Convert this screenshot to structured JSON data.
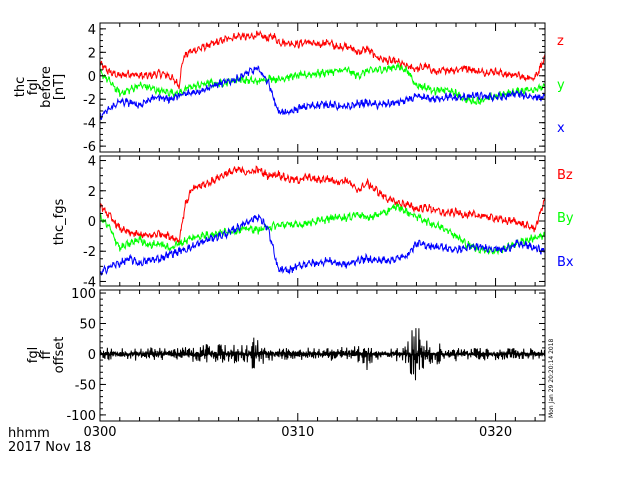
{
  "chart_data": {
    "type": "line",
    "x_axis": {
      "tick_labels": [
        "0300",
        "0310",
        "0320"
      ],
      "tick_minutes": [
        0,
        10,
        20
      ],
      "range_minutes": [
        0,
        22.5
      ],
      "label_line1": "hhmm",
      "label_line2": "2017 Nov 18"
    },
    "timestamp": "Mon Jan 29 20:20:14 2018",
    "panels": [
      {
        "ylabel_lines": [
          "thc",
          "fgl",
          "before",
          "[nT]"
        ],
        "yticks": [
          "4",
          "2",
          "0",
          "-2",
          "-4",
          "-6"
        ],
        "ytick_values": [
          4,
          2,
          0,
          -2,
          -4,
          -6
        ],
        "ylim": [
          -6.5,
          4.5
        ],
        "grid": false,
        "series": [
          {
            "name": "z",
            "color": "#ff0000",
            "x": [
              0,
              0.5,
              1,
              1.5,
              2,
              2.5,
              3,
              3.5,
              4,
              4.2,
              4.5,
              5,
              5.5,
              6,
              6.5,
              7,
              7.5,
              8,
              8.5,
              8.8,
              9,
              9.5,
              10,
              10.5,
              11,
              11.5,
              12,
              12.5,
              13,
              13.5,
              14,
              14.5,
              15,
              15.5,
              16,
              16.5,
              17,
              17.5,
              18,
              18.5,
              19,
              19.5,
              20,
              20.5,
              21,
              21.5,
              22,
              22.5
            ],
            "y": [
              1.0,
              0.3,
              0.0,
              0.2,
              0.0,
              0.0,
              0.2,
              0.0,
              -0.8,
              1.5,
              2.0,
              2.3,
              2.6,
              2.9,
              3.2,
              3.4,
              3.3,
              3.5,
              3.2,
              3.4,
              2.9,
              2.8,
              2.7,
              2.9,
              2.6,
              2.9,
              2.4,
              2.6,
              2.0,
              2.3,
              1.6,
              1.3,
              1.2,
              0.8,
              0.6,
              0.8,
              0.3,
              0.5,
              0.5,
              0.7,
              0.4,
              0.3,
              0.4,
              0.1,
              0.1,
              -0.2,
              -0.1,
              1.5
            ]
          },
          {
            "name": "y",
            "color": "#00ff00",
            "x": [
              0,
              0.5,
              1,
              1.5,
              2,
              2.5,
              3,
              3.5,
              4,
              4.5,
              5,
              5.5,
              6,
              6.5,
              7,
              7.5,
              8,
              8.5,
              9,
              9.5,
              10,
              10.5,
              11,
              11.5,
              12,
              12.5,
              13,
              13.5,
              14,
              14.5,
              15,
              15.5,
              16,
              16.5,
              17,
              17.5,
              18,
              18.5,
              19,
              19.5,
              20,
              20.5,
              21,
              21.5,
              22,
              22.5
            ],
            "y": [
              0.3,
              -0.5,
              -1.5,
              -1.2,
              -0.8,
              -1.0,
              -1.3,
              -1.4,
              -1.5,
              -1.0,
              -0.8,
              -0.6,
              -0.7,
              -0.5,
              -0.3,
              -0.4,
              -0.5,
              -0.2,
              -0.3,
              -0.1,
              0.0,
              0.1,
              0.2,
              0.3,
              0.4,
              0.5,
              0.0,
              0.4,
              0.5,
              0.6,
              0.8,
              0.5,
              -0.8,
              -1.0,
              -1.3,
              -1.2,
              -1.5,
              -2.0,
              -2.2,
              -2.0,
              -1.8,
              -1.5,
              -1.4,
              -1.2,
              -1.1,
              -1.0
            ]
          },
          {
            "name": "x",
            "color": "#0000ff",
            "x": [
              0,
              0.5,
              1,
              1.5,
              2,
              2.5,
              3,
              3.5,
              4,
              4.5,
              5,
              5.5,
              6,
              6.5,
              7,
              7.5,
              8,
              8.5,
              9,
              9.5,
              10,
              10.5,
              11,
              11.5,
              12,
              12.5,
              13,
              13.5,
              14,
              14.5,
              15,
              15.5,
              16,
              16.5,
              17,
              17.5,
              18,
              18.5,
              19,
              19.5,
              20,
              20.5,
              21,
              21.5,
              22,
              22.5
            ],
            "y": [
              -3.5,
              -2.8,
              -2.2,
              -2.3,
              -2.5,
              -2.0,
              -1.8,
              -2.0,
              -1.7,
              -1.5,
              -1.3,
              -1.0,
              -0.7,
              -0.5,
              -0.2,
              0.3,
              0.6,
              -0.5,
              -3.0,
              -3.2,
              -2.8,
              -2.6,
              -2.5,
              -2.4,
              -2.6,
              -2.7,
              -2.4,
              -2.3,
              -2.5,
              -2.4,
              -2.3,
              -2.1,
              -1.8,
              -1.9,
              -2.0,
              -1.8,
              -1.9,
              -1.8,
              -1.7,
              -1.8,
              -1.8,
              -1.8,
              -1.5,
              -1.7,
              -1.8,
              -1.9
            ]
          }
        ]
      },
      {
        "ylabel_lines": [
          "thc_fgs"
        ],
        "yticks": [
          "4",
          "2",
          "0",
          "-2",
          "-4"
        ],
        "ytick_values": [
          4,
          2,
          0,
          -2,
          -4
        ],
        "ylim": [
          -4.3,
          4.3
        ],
        "grid": false,
        "series": [
          {
            "name": "Bz",
            "color": "#ff0000",
            "x": [
              0,
              0.5,
              1,
              1.5,
              2,
              2.5,
              3,
              3.5,
              4,
              4.3,
              4.6,
              5,
              5.5,
              6,
              6.5,
              7,
              7.5,
              8,
              8.5,
              9,
              9.5,
              10,
              10.5,
              11,
              11.5,
              12,
              12.5,
              13,
              13.5,
              14,
              14.5,
              15,
              15.5,
              16,
              16.5,
              17,
              17.5,
              18,
              18.5,
              19,
              19.5,
              20,
              20.5,
              21,
              21.5,
              22,
              22.5
            ],
            "y": [
              1.0,
              0.3,
              -0.5,
              -0.8,
              -0.9,
              -1.0,
              -0.8,
              -1.0,
              -1.3,
              1.0,
              2.0,
              2.3,
              2.5,
              2.9,
              3.2,
              3.4,
              3.2,
              3.4,
              3.0,
              3.1,
              2.8,
              2.7,
              2.9,
              2.7,
              2.8,
              2.6,
              2.7,
              2.0,
              2.5,
              2.0,
              1.5,
              1.2,
              1.1,
              0.8,
              0.9,
              0.7,
              0.5,
              0.6,
              0.4,
              0.4,
              0.3,
              0.2,
              0.0,
              0.0,
              -0.3,
              -0.5,
              1.5
            ]
          },
          {
            "name": "By",
            "color": "#00ff00",
            "x": [
              0,
              0.5,
              1,
              1.5,
              2,
              2.5,
              3,
              3.5,
              4,
              4.5,
              5,
              5.5,
              6,
              6.5,
              7,
              7.5,
              8,
              8.5,
              9,
              9.5,
              10,
              10.5,
              11,
              11.5,
              12,
              12.5,
              13,
              13.5,
              14,
              14.5,
              15,
              15.5,
              16,
              16.5,
              17,
              17.5,
              18,
              18.5,
              19,
              19.5,
              20,
              20.5,
              21,
              21.5,
              22,
              22.5
            ],
            "y": [
              0.3,
              -0.5,
              -1.8,
              -1.5,
              -1.2,
              -1.6,
              -1.5,
              -1.8,
              -1.5,
              -1.2,
              -1.0,
              -0.9,
              -0.8,
              -0.7,
              -0.6,
              -0.5,
              -0.6,
              -0.4,
              -0.3,
              -0.2,
              -0.3,
              -0.1,
              0.0,
              0.1,
              0.3,
              0.2,
              0.5,
              0.2,
              0.4,
              0.6,
              1.0,
              0.6,
              0.3,
              0.0,
              -0.3,
              -0.5,
              -1.0,
              -1.5,
              -1.8,
              -1.9,
              -2.0,
              -1.8,
              -1.5,
              -1.3,
              -1.1,
              -1.0
            ]
          },
          {
            "name": "Bx",
            "color": "#0000ff",
            "x": [
              0,
              0.5,
              1,
              1.5,
              2,
              2.5,
              3,
              3.5,
              4,
              4.5,
              5,
              5.5,
              6,
              6.5,
              7,
              7.5,
              8,
              8.5,
              9,
              9.5,
              10,
              10.5,
              11,
              11.5,
              12,
              12.5,
              13,
              13.5,
              14,
              14.5,
              15,
              15.5,
              16,
              16.5,
              17,
              17.5,
              18,
              18.5,
              19,
              19.5,
              20,
              20.5,
              21,
              21.5,
              22,
              22.5
            ],
            "y": [
              -3.5,
              -3.0,
              -2.8,
              -2.5,
              -2.8,
              -2.6,
              -2.5,
              -2.2,
              -2.0,
              -1.8,
              -1.5,
              -1.2,
              -1.0,
              -0.8,
              -0.4,
              0.0,
              0.3,
              -0.5,
              -3.2,
              -3.3,
              -3.0,
              -2.8,
              -2.8,
              -2.6,
              -2.8,
              -2.9,
              -2.6,
              -2.5,
              -2.6,
              -2.6,
              -2.5,
              -2.3,
              -1.5,
              -1.6,
              -1.7,
              -1.8,
              -1.9,
              -1.8,
              -1.7,
              -1.8,
              -1.8,
              -1.9,
              -1.5,
              -1.6,
              -1.8,
              -2.0
            ]
          }
        ]
      },
      {
        "ylabel_lines": [
          "fgl",
          "ff",
          "offset"
        ],
        "yticks": [
          "100",
          "50",
          "0",
          "-50",
          "-100"
        ],
        "ytick_values": [
          100,
          50,
          0,
          -50,
          -100
        ],
        "ylim": [
          -110,
          105
        ],
        "grid": false,
        "series": [
          {
            "name": "",
            "color": "#000000",
            "x": [
              0,
              1,
              2,
              3,
              4,
              5,
              6,
              7,
              7.5,
              8,
              8.2,
              8.4,
              8.6,
              8.8,
              9,
              10,
              11,
              12,
              13,
              13.5,
              14,
              15,
              15.5,
              15.8,
              16,
              16.2,
              16.5,
              17,
              17.5,
              18,
              18.5,
              19,
              20,
              21,
              22,
              22.5
            ],
            "y": [
              0,
              0,
              0,
              0,
              0,
              0,
              0,
              0,
              0,
              0,
              0,
              0,
              0,
              0,
              0,
              0,
              0,
              0,
              0,
              0,
              0,
              0,
              0,
              0,
              0,
              0,
              0,
              0,
              0,
              0,
              0,
              0,
              0,
              0,
              0,
              0
            ],
            "spread": [
              8,
              10,
              8,
              10,
              8,
              12,
              15,
              18,
              20,
              30,
              20,
              15,
              12,
              10,
              8,
              10,
              10,
              10,
              10,
              25,
              10,
              10,
              15,
              55,
              50,
              40,
              30,
              20,
              15,
              10,
              12,
              10,
              8,
              8,
              8,
              8
            ]
          }
        ]
      }
    ],
    "legend": [
      {
        "label": "z",
        "color": "#ff0000",
        "panel": 0
      },
      {
        "label": "y",
        "color": "#00ff00",
        "panel": 0
      },
      {
        "label": "x",
        "color": "#0000ff",
        "panel": 0
      },
      {
        "label": "Bz",
        "color": "#ff0000",
        "panel": 1
      },
      {
        "label": "By",
        "color": "#00ff00",
        "panel": 1
      },
      {
        "label": "Bx",
        "color": "#0000ff",
        "panel": 1
      }
    ]
  }
}
